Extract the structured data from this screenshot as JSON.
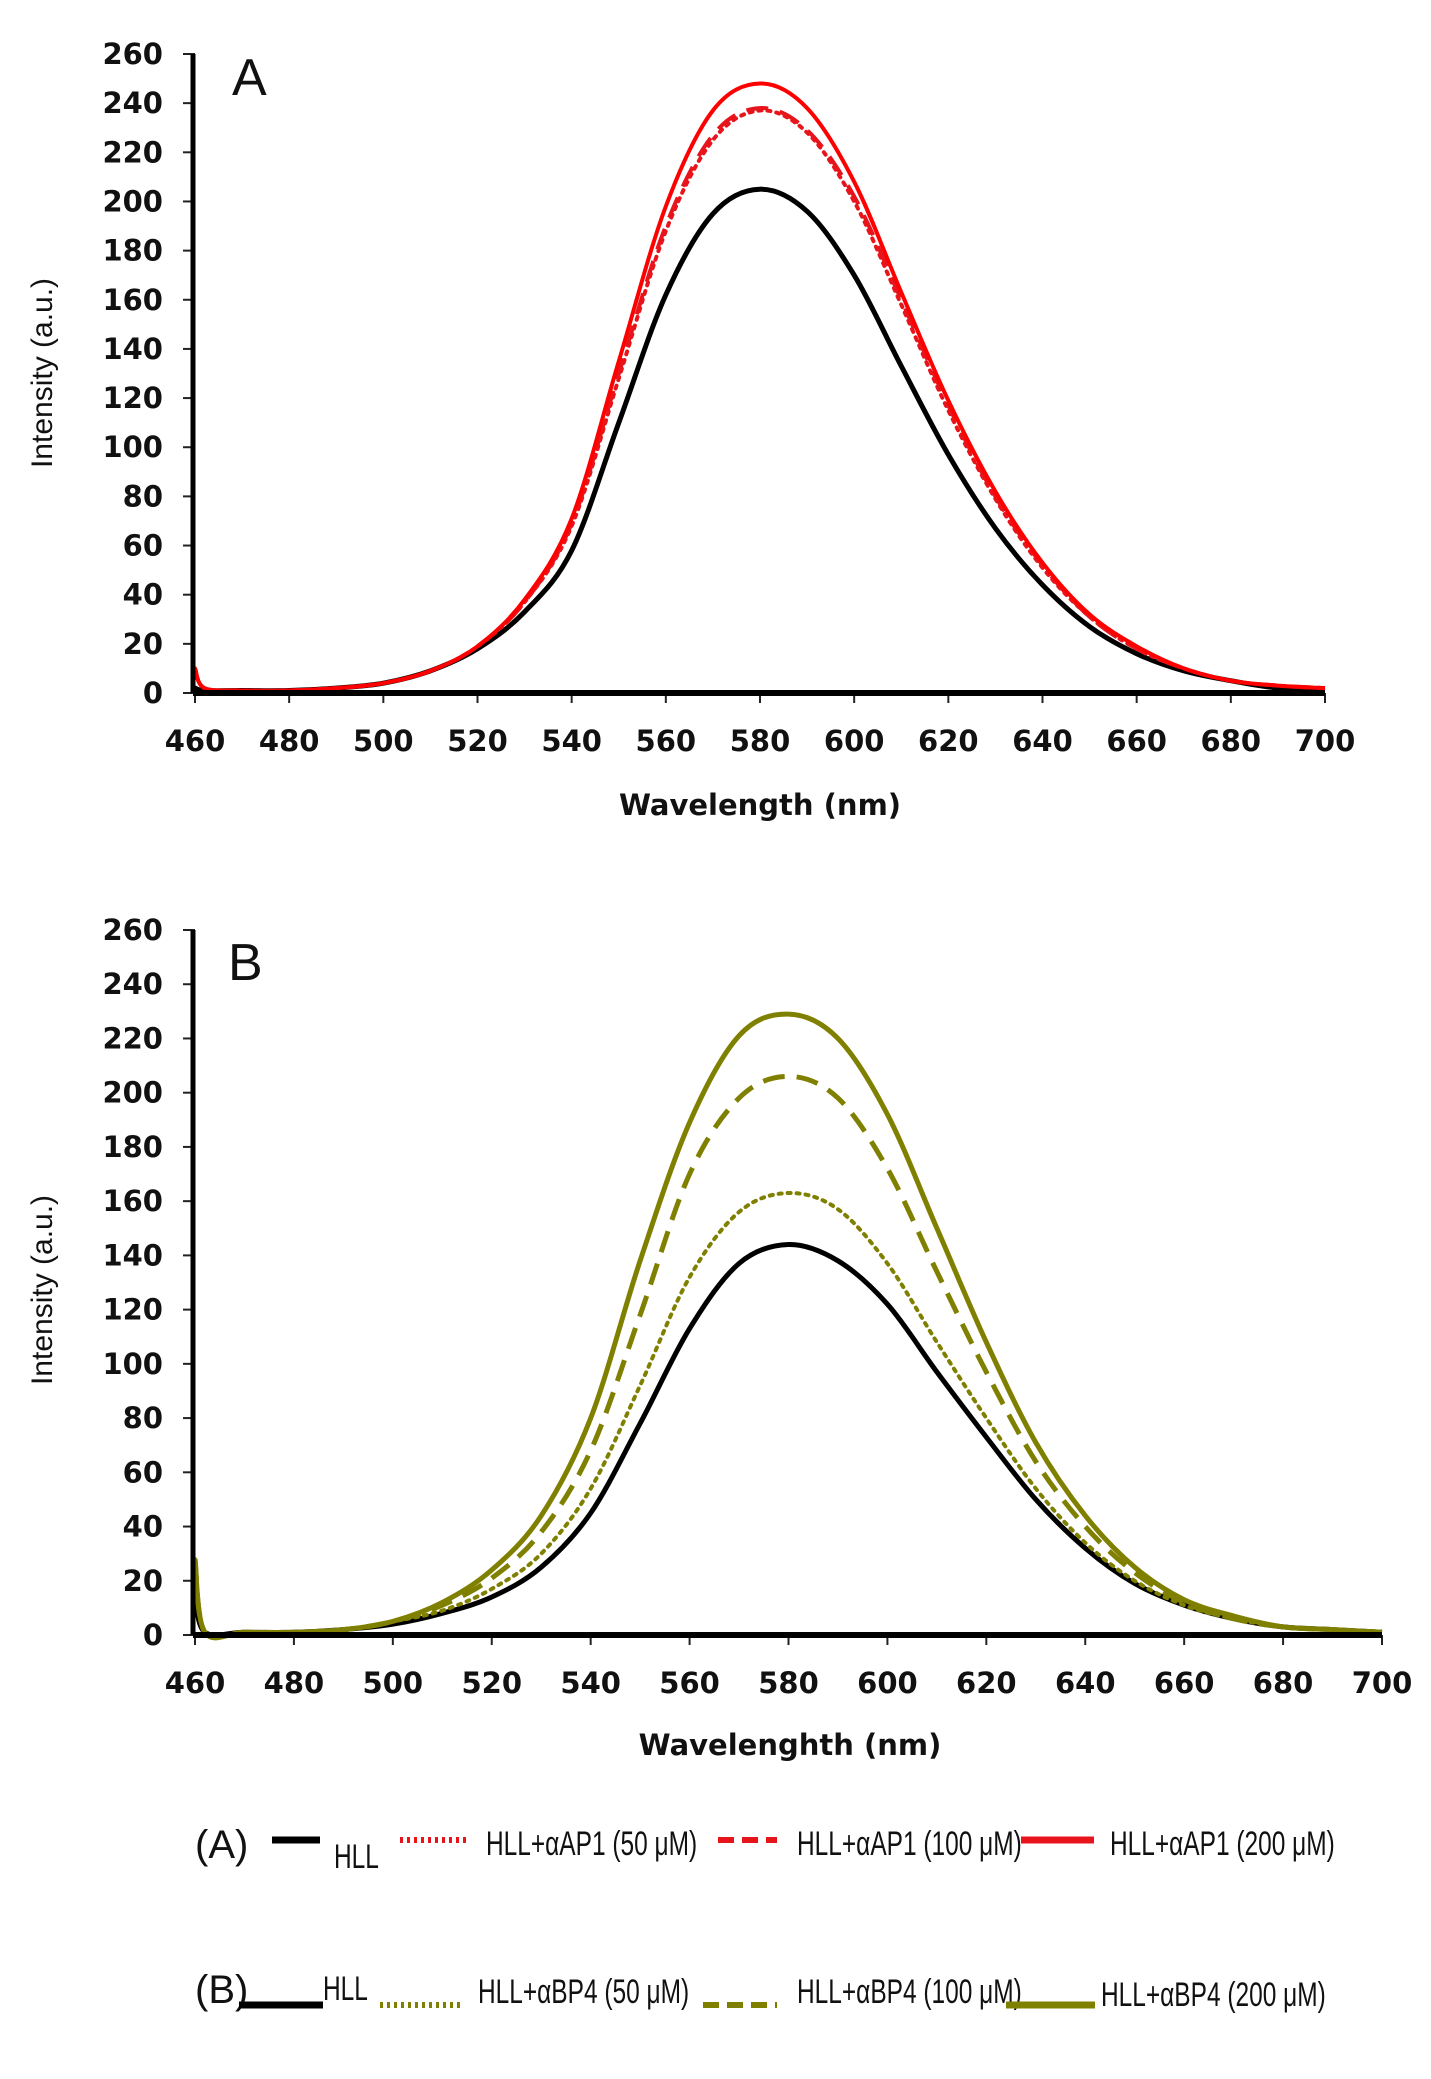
{
  "chart_data": [
    {
      "type": "line",
      "panel": "A",
      "xlabel": "Wavelength (nm)",
      "ylabel": "Intensity (a.u.)",
      "xlim": [
        460,
        700
      ],
      "ylim": [
        0,
        260
      ],
      "xticks": [
        460,
        480,
        500,
        520,
        540,
        560,
        580,
        600,
        620,
        640,
        660,
        680,
        700
      ],
      "yticks": [
        0,
        20,
        40,
        60,
        80,
        100,
        120,
        140,
        160,
        180,
        200,
        220,
        240,
        260
      ],
      "grid": false,
      "x": [
        460,
        462,
        470,
        480,
        490,
        500,
        510,
        520,
        530,
        540,
        550,
        560,
        570,
        580,
        590,
        600,
        610,
        620,
        630,
        640,
        650,
        660,
        670,
        680,
        690,
        700
      ],
      "series": [
        {
          "name": "HLL",
          "style": "solid",
          "color": "#000000",
          "values": [
            2,
            1,
            1,
            1,
            2,
            4,
            9,
            18,
            33,
            58,
            110,
            162,
            195,
            205,
            196,
            170,
            133,
            97,
            67,
            44,
            27,
            16,
            9,
            5,
            2,
            1
          ]
        },
        {
          "name": "HLL+αAP1 (50 μM)",
          "style": "dotted",
          "color": "#e8141b",
          "values": [
            10,
            2,
            1,
            1,
            2,
            4,
            9,
            19,
            37,
            68,
            128,
            188,
            225,
            237,
            228,
            200,
            158,
            115,
            79,
            51,
            31,
            18,
            10,
            5,
            3,
            2
          ]
        },
        {
          "name": "HLL+αAP1 (100 μM)",
          "style": "dashed",
          "color": "#e8141b",
          "values": [
            10,
            2,
            1,
            1,
            2,
            4,
            9,
            19,
            37,
            69,
            130,
            190,
            227,
            238,
            229,
            202,
            160,
            117,
            80,
            52,
            31,
            18,
            10,
            5,
            3,
            2
          ]
        },
        {
          "name": "HLL+αAP1 (200 μM)",
          "style": "solid",
          "color": "#ff0000",
          "values": [
            10,
            2,
            1,
            1,
            2,
            4,
            9,
            19,
            38,
            71,
            135,
            198,
            237,
            248,
            238,
            208,
            163,
            119,
            82,
            53,
            32,
            19,
            10,
            5,
            3,
            2
          ]
        }
      ]
    },
    {
      "type": "line",
      "panel": "B",
      "xlabel": "Wavelenghth (nm)",
      "ylabel": "Intensity (a.u.)",
      "xlim": [
        460,
        700
      ],
      "ylim": [
        0,
        260
      ],
      "xticks": [
        460,
        480,
        500,
        520,
        540,
        560,
        580,
        600,
        620,
        640,
        660,
        680,
        700
      ],
      "yticks": [
        0,
        20,
        40,
        60,
        80,
        100,
        120,
        140,
        160,
        180,
        200,
        220,
        240,
        260
      ],
      "grid": false,
      "x": [
        460,
        462,
        470,
        480,
        490,
        500,
        510,
        520,
        530,
        540,
        550,
        560,
        570,
        580,
        590,
        600,
        610,
        620,
        630,
        640,
        650,
        660,
        670,
        680,
        690,
        700
      ],
      "series": [
        {
          "name": "HLL",
          "style": "solid",
          "color": "#000000",
          "values": [
            15,
            1,
            1,
            1,
            2,
            4,
            8,
            14,
            25,
            45,
            78,
            113,
            137,
            144,
            138,
            122,
            97,
            73,
            50,
            32,
            19,
            11,
            6,
            3,
            2,
            1
          ]
        },
        {
          "name": "HLL+αBP4 (50 μM)",
          "style": "dotted",
          "color": "#808000",
          "values": [
            28,
            1,
            1,
            1,
            2,
            5,
            9,
            17,
            30,
            54,
            92,
            132,
            156,
            163,
            157,
            137,
            108,
            80,
            54,
            34,
            20,
            11,
            6,
            3,
            2,
            1
          ]
        },
        {
          "name": "HLL+αBP4 (100 μM)",
          "style": "dashed",
          "color": "#808000",
          "values": [
            28,
            1,
            1,
            1,
            2,
            5,
            11,
            21,
            38,
            68,
            118,
            170,
            198,
            206,
            198,
            172,
            134,
            97,
            64,
            40,
            23,
            12,
            6,
            3,
            2,
            1
          ]
        },
        {
          "name": "HLL+αBP4 (200 μM)",
          "style": "solid",
          "color": "#808000",
          "values": [
            28,
            1,
            1,
            1,
            2,
            5,
            12,
            24,
            44,
            80,
            138,
            189,
            221,
            229,
            220,
            192,
            150,
            108,
            71,
            44,
            25,
            13,
            7,
            3,
            2,
            1
          ]
        }
      ]
    }
  ],
  "legend": {
    "A": {
      "group_label": "(A)",
      "items": [
        {
          "label": "HLL",
          "style": "solid",
          "color": "#000000"
        },
        {
          "label": "HLL+αAP1 (50 μM)",
          "style": "dotted",
          "color": "#e8141b"
        },
        {
          "label": "HLL+αAP1 (100 μM)",
          "style": "dashed",
          "color": "#e8141b"
        },
        {
          "label": "HLL+αAP1 (200 μM)",
          "style": "solid",
          "color": "#e8141b"
        }
      ]
    },
    "B": {
      "group_label": "(B)",
      "items": [
        {
          "label": "HLL",
          "style": "solid",
          "color": "#000000"
        },
        {
          "label": "HLL+αBP4 (50 μM)",
          "style": "dotted",
          "color": "#808000"
        },
        {
          "label": "HLL+αBP4 (100 μM)",
          "style": "dashed",
          "color": "#808000"
        },
        {
          "label": "HLL+αBP4 (200 μM)",
          "style": "solid",
          "color": "#808000"
        }
      ]
    }
  }
}
